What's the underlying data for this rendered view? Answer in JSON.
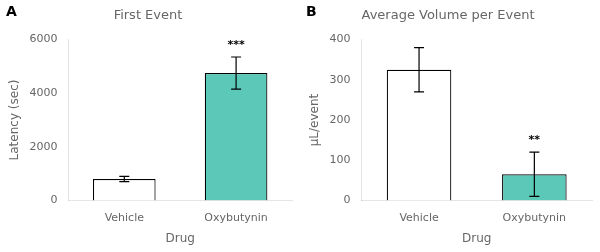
{
  "chart_data": [
    {
      "type": "bar",
      "label": "A",
      "title": "First Event",
      "categories": [
        "Vehicle",
        "Oxybutynin"
      ],
      "values": [
        800,
        4750
      ],
      "errors": [
        100,
        600
      ],
      "colors": [
        "#ffffff",
        "#5bc8b8"
      ],
      "edge_color": "#000000",
      "xlabel": "Drug",
      "ylabel": "Latency (sec)",
      "ylim": [
        0,
        6000
      ],
      "yticks": [
        0,
        2000,
        4000,
        6000
      ],
      "grid": false,
      "annotations": [
        {
          "category": "Oxybutynin",
          "text": "***"
        }
      ]
    },
    {
      "type": "bar",
      "label": "B",
      "title": "Average Volume per Event",
      "categories": [
        "Vehicle",
        "Oxybutynin"
      ],
      "values": [
        325,
        65
      ],
      "errors": [
        55,
        55
      ],
      "colors": [
        "#ffffff",
        "#5bc8b8"
      ],
      "edge_color": "#000000",
      "xlabel": "Drug",
      "ylabel": "μL/event",
      "ylim": [
        0,
        400
      ],
      "yticks": [
        0,
        100,
        200,
        300,
        400
      ],
      "grid": false,
      "annotations": [
        {
          "category": "Oxybutynin",
          "text": "**"
        }
      ]
    }
  ]
}
